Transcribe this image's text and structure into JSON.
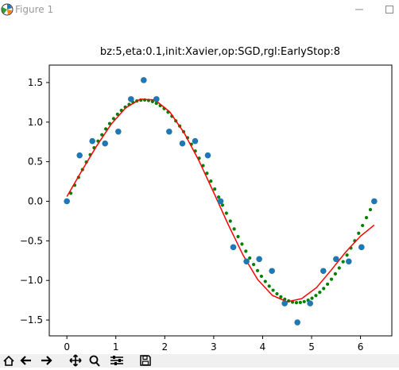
{
  "window": {
    "title": "Figure 1",
    "icons": {
      "app": "matplotlib-icon",
      "minimize": "minimize-icon",
      "maximize": "maximize-icon"
    }
  },
  "toolbar": {
    "buttons": [
      {
        "name": "home-button",
        "icon": "home-icon"
      },
      {
        "name": "back-button",
        "icon": "arrow-left-icon"
      },
      {
        "name": "forward-button",
        "icon": "arrow-right-icon"
      },
      {
        "name": "pan-button",
        "icon": "move-icon"
      },
      {
        "name": "zoom-button",
        "icon": "magnifier-icon"
      },
      {
        "name": "configure-subplots-button",
        "icon": "sliders-icon"
      },
      {
        "name": "save-button",
        "icon": "floppy-icon"
      }
    ]
  },
  "chart_data": {
    "type": "scatter",
    "title": "bz:5,eta:0.1,init:Xavier,op:SGD,rgl:EarlyStop:8",
    "xlabel": "",
    "ylabel": "",
    "xlim": [
      -0.36,
      6.64
    ],
    "ylim": [
      -1.7,
      1.72
    ],
    "xticks": [
      0,
      1,
      2,
      3,
      4,
      5,
      6
    ],
    "xtick_labels": [
      "0",
      "1",
      "2",
      "3",
      "4",
      "5",
      "6"
    ],
    "yticks": [
      -1.5,
      -1.0,
      -0.5,
      0.0,
      0.5,
      1.0,
      1.5
    ],
    "ytick_labels": [
      "−1.5",
      "−1.0",
      "−0.5",
      "0.0",
      "0.5",
      "1.0",
      "1.5"
    ],
    "grid": false,
    "colors": {
      "samples": "#1f77b4",
      "fit": "#ff0000",
      "target": "#008000"
    },
    "samples": {
      "x": [
        0.0,
        0.26,
        0.52,
        0.78,
        1.05,
        1.31,
        1.57,
        1.83,
        2.09,
        2.36,
        2.62,
        2.88,
        3.14,
        3.4,
        3.67,
        3.93,
        4.19,
        4.45,
        4.71,
        4.97,
        5.24,
        5.5,
        5.76,
        6.02,
        6.28
      ],
      "y": [
        0.0,
        0.58,
        0.76,
        0.73,
        0.88,
        1.29,
        1.53,
        1.29,
        0.88,
        0.73,
        0.76,
        0.58,
        0.0,
        -0.58,
        -0.76,
        -0.73,
        -0.88,
        -1.29,
        -1.53,
        -1.29,
        -0.88,
        -0.73,
        -0.76,
        -0.58,
        0.0
      ]
    },
    "target_curve": {
      "function": "1.28*sin(x)",
      "x_range": [
        0,
        6.28
      ],
      "points": 80
    },
    "fit_curve": {
      "x": [
        0.0,
        0.3,
        0.6,
        0.9,
        1.2,
        1.5,
        1.8,
        2.1,
        2.4,
        2.7,
        3.0,
        3.3,
        3.6,
        3.9,
        4.2,
        4.5,
        4.8,
        5.1,
        5.4,
        5.7,
        6.0,
        6.28
      ],
      "y": [
        0.06,
        0.38,
        0.69,
        0.97,
        1.18,
        1.29,
        1.28,
        1.13,
        0.86,
        0.51,
        0.11,
        -0.3,
        -0.68,
        -0.99,
        -1.19,
        -1.27,
        -1.23,
        -1.09,
        -0.87,
        -0.64,
        -0.44,
        -0.3
      ]
    }
  }
}
